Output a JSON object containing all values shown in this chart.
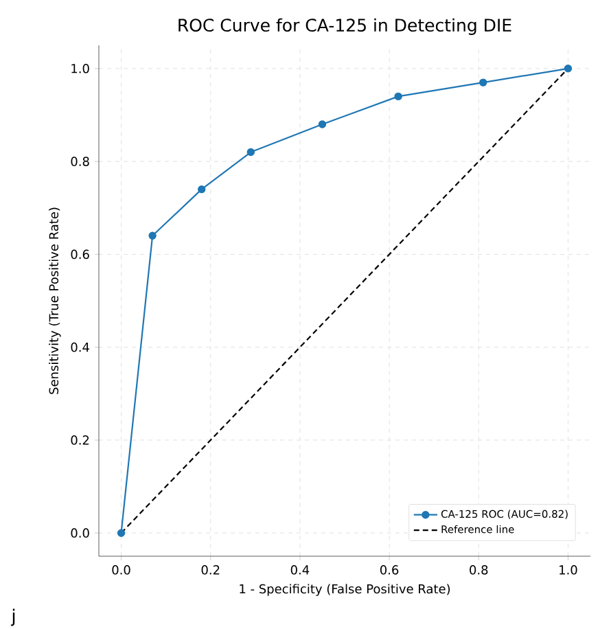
{
  "chart_data": {
    "type": "line",
    "title": "ROC Curve for CA-125 in Detecting DIE",
    "xlabel": "1 - Specificity (False Positive Rate)",
    "ylabel": "Sensitivity (True Positive Rate)",
    "series": [
      {
        "name": "CA-125 ROC (AUC=0.82)",
        "color": "#1f77b4",
        "marker": "circle",
        "line_style": "solid",
        "x": [
          0,
          0.07,
          0.18,
          0.29,
          0.45,
          0.62,
          0.81,
          1.0
        ],
        "values": [
          0,
          0.64,
          0.74,
          0.82,
          0.88,
          0.94,
          0.97,
          1.0
        ]
      },
      {
        "name": "Reference line",
        "color": "#000000",
        "marker": "none",
        "line_style": "dashed",
        "x": [
          0,
          1
        ],
        "values": [
          0,
          1
        ]
      }
    ],
    "xlim": [
      -0.05,
      1.05
    ],
    "ylim": [
      -0.05,
      1.05
    ],
    "xticks": [
      {
        "value": 0,
        "label": "0.0"
      },
      0.2,
      0.4,
      0.6,
      0.8,
      {
        "value": 1,
        "label": "1.0"
      }
    ],
    "yticks": [
      {
        "value": 0,
        "label": "0.0"
      },
      0.2,
      0.4,
      0.6,
      0.8,
      {
        "value": 1,
        "label": "1.0"
      }
    ],
    "grid": true,
    "legend": "bottom right",
    "annotations": [
      "j"
    ]
  }
}
